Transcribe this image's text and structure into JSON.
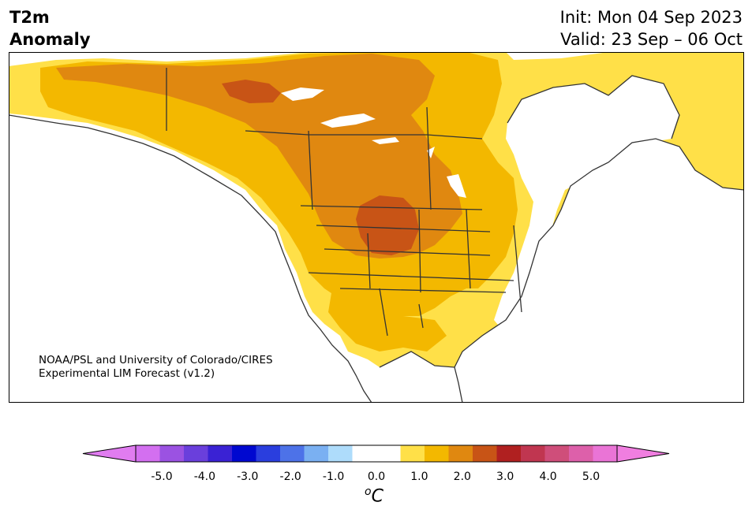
{
  "title": {
    "left_line1": "T2m",
    "left_line2": "Anomaly",
    "init": "Init: Mon 04 Sep 2023",
    "valid": "Valid: 23 Sep – 06 Oct"
  },
  "credit": {
    "line1": "NOAA/PSL and University of Colorado/CIRES",
    "line2": "Experimental LIM Forecast (v1.2)"
  },
  "colorbar": {
    "unit_base": "C",
    "unit_sup": "o",
    "ticks": [
      "-5.0",
      "-4.0",
      "-3.0",
      "-2.0",
      "-1.0",
      "0.0",
      "1.0",
      "2.0",
      "3.0",
      "4.0",
      "5.0"
    ],
    "colors": [
      "#d36ff0",
      "#9b52e2",
      "#6a3fdc",
      "#3a22d4",
      "#0008d0",
      "#2a3ede",
      "#4d72e8",
      "#7ab0f2",
      "#aedcfb",
      "#ffffff",
      "#ffffff",
      "#ffe048",
      "#f3b800",
      "#e08810",
      "#c85416",
      "#b02020",
      "#c03650",
      "#cf4e7a",
      "#dd60aa",
      "#ea74d6"
    ],
    "under_color": "#e07cf0",
    "over_color": "#f07ee0"
  },
  "map_colors": {
    "land_bg": "#ffffff",
    "ocean": "#ffffff",
    "anom_05_1": "#ffe048",
    "anom_1_15": "#f3b800",
    "anom_15_2": "#e08810",
    "anom_2_25": "#c85416",
    "coast": "#333333"
  }
}
